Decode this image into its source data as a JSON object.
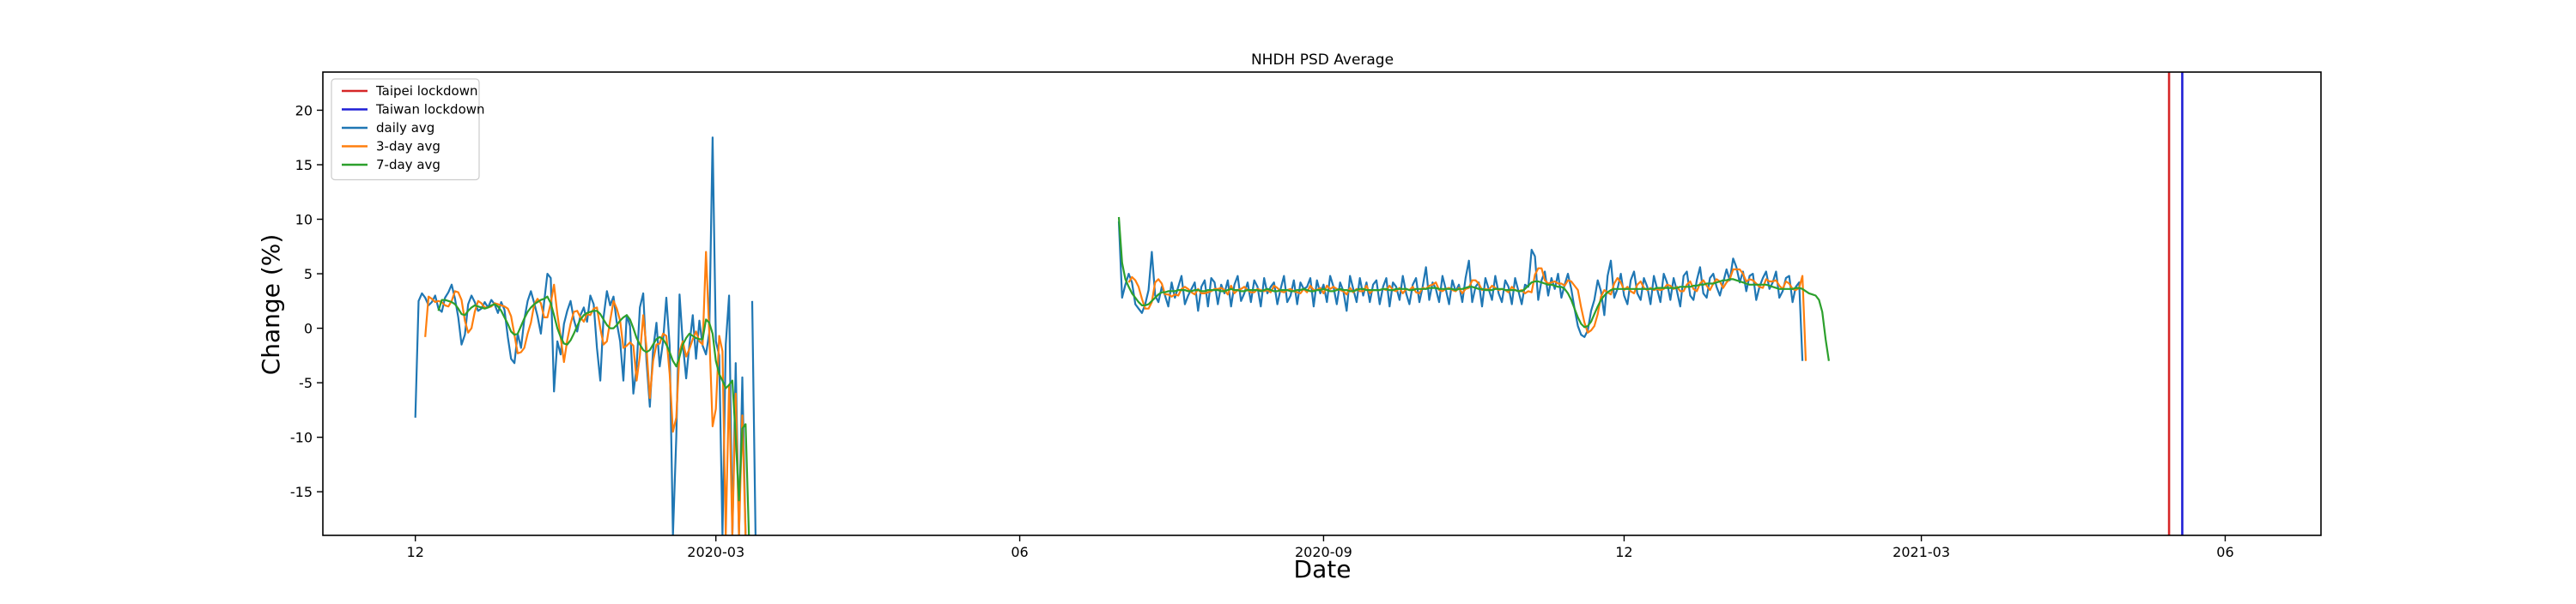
{
  "chart_data": {
    "type": "line",
    "title": "NHDH PSD Average",
    "xlabel": "Date",
    "ylabel": "Change (%)",
    "ylim": [
      -19,
      23.5
    ],
    "xlim": [
      "2019-11-03",
      "2021-06-30"
    ],
    "grid": false,
    "legend_position": "top-left",
    "yticks": [
      20,
      15,
      10,
      5,
      0,
      -5,
      -10,
      -15
    ],
    "xticks": [
      {
        "date": "2019-12-01",
        "label": "12"
      },
      {
        "date": "2020-03-01",
        "label": "2020-03"
      },
      {
        "date": "2020-06-01",
        "label": "06"
      },
      {
        "date": "2020-09-01",
        "label": "2020-09"
      },
      {
        "date": "2020-12-01",
        "label": "12"
      },
      {
        "date": "2021-03-01",
        "label": "2021-03"
      },
      {
        "date": "2021-06-01",
        "label": "06"
      }
    ],
    "vlines": [
      {
        "name": "Taipei lockdown",
        "date": "2021-05-15",
        "color": "#d62728"
      },
      {
        "name": "Taiwan lockdown",
        "date": "2021-05-19",
        "color": "#1f1fd6"
      }
    ],
    "series": [
      {
        "name": "daily avg",
        "color": "#1f77b4",
        "segments": [
          {
            "start": "2019-12-01",
            "values": [
              -8.2,
              2.5,
              3.2,
              2.8,
              2.1,
              2.4,
              3.0,
              1.8,
              1.5,
              2.8,
              3.3,
              4.0,
              2.7,
              1.0,
              -1.5,
              -0.6,
              2.2,
              3.0,
              2.4,
              1.6,
              1.8,
              2.4,
              1.9,
              2.6,
              2.2,
              1.4,
              2.4,
              1.7,
              -0.8,
              -2.8,
              -3.2,
              -0.5,
              -1.8,
              0.8,
              2.5,
              3.4,
              2.3,
              1.1,
              -0.5,
              2.4,
              5.0,
              4.6,
              -5.8,
              -1.2,
              -2.4,
              0.4,
              1.6,
              2.5,
              0.8,
              -0.3,
              1.2,
              1.9,
              0.6,
              3.0,
              2.2,
              -1.8,
              -4.8,
              1.0,
              3.4,
              2.1,
              2.9,
              0.5,
              -1.2,
              -4.8,
              1.2,
              0.2,
              -6.0,
              -3.5,
              1.9,
              3.2,
              -3.0,
              -7.2,
              -2.0,
              0.5,
              -3.5,
              -1.2,
              2.8,
              -1.6,
              -19,
              -10,
              3.1,
              -1.4,
              -4.6,
              -1.5,
              1.2,
              -2.8,
              0.7,
              -1.6,
              -2.4,
              -0.4,
              17.5,
              -1.2,
              -2.5,
              -19,
              -1.5,
              3.0,
              -19,
              -3.2,
              -19,
              -4.5,
              -19,
              null,
              2.5,
              -19
            ]
          },
          {
            "start": "2020-07-01",
            "values": [
              9.8,
              2.8,
              4.0,
              5.0,
              4.2,
              2.2,
              1.8,
              1.4,
              2.2,
              3.5,
              7.0,
              3.0,
              2.4,
              3.8,
              3.0,
              2.0,
              4.2,
              2.8,
              3.8,
              4.8,
              2.2,
              3.0,
              3.6,
              4.2,
              1.6,
              3.8,
              4.4,
              2.0,
              4.6,
              4.2,
              2.2,
              4.0,
              3.2,
              4.4,
              2.0,
              4.0,
              4.8,
              2.5,
              3.2,
              4.2,
              2.4,
              4.4,
              3.8,
              2.0,
              4.6,
              3.2,
              3.8,
              4.2,
              2.2,
              3.6,
              4.8,
              2.4,
              3.0,
              4.4,
              2.2,
              4.2,
              3.6,
              3.8,
              4.6,
              2.0,
              4.4,
              3.2,
              4.0,
              2.4,
              4.8,
              3.8,
              2.2,
              4.2,
              3.4,
              1.6,
              4.8,
              3.6,
              2.4,
              4.6,
              3.0,
              4.2,
              2.4,
              4.0,
              4.4,
              2.2,
              3.8,
              4.6,
              2.0,
              4.2,
              3.8,
              2.6,
              4.8,
              3.2,
              2.2,
              4.0,
              4.6,
              2.4,
              3.8,
              5.6,
              2.6,
              4.2,
              3.6,
              2.4,
              4.8,
              3.6,
              2.2,
              4.4,
              3.4,
              4.0,
              2.4,
              4.6,
              6.2,
              2.4,
              3.8,
              4.2,
              2.0,
              4.6,
              3.6,
              2.6,
              4.8,
              3.2,
              2.4,
              4.4,
              3.8,
              2.2,
              4.6,
              3.4,
              2.2,
              4.0,
              3.8,
              7.2,
              6.6,
              2.6,
              4.4,
              5.2,
              3.0,
              4.6,
              3.6,
              5.0,
              2.8,
              4.0,
              5.0,
              3.6,
              1.8,
              0.2,
              -0.6,
              -0.8,
              -0.2,
              1.6,
              2.6,
              4.4,
              3.4,
              1.2,
              4.8,
              6.2,
              2.8,
              3.6,
              5.0,
              3.0,
              2.2,
              4.4,
              5.2,
              3.2,
              2.6,
              4.6,
              3.8,
              2.2,
              4.8,
              3.6,
              2.4,
              5.0,
              4.2,
              2.6,
              4.6,
              3.4,
              2.0,
              4.8,
              5.2,
              3.0,
              2.6,
              4.4,
              5.6,
              3.2,
              2.8,
              4.6,
              5.0,
              3.8,
              3.0,
              4.2,
              5.4,
              4.4,
              6.4,
              5.6,
              4.2,
              5.2,
              3.4,
              4.8,
              5.0,
              2.6,
              3.8,
              4.6,
              5.2,
              3.6,
              4.2,
              5.2,
              2.8,
              3.4,
              4.6,
              4.8,
              2.4,
              3.8,
              4.2,
              -3.0
            ]
          }
        ]
      },
      {
        "name": "3-day avg",
        "color": "#ff7f0e",
        "segments": [
          {
            "start": "2019-12-04",
            "values": [
              -0.8,
              2.9,
              2.7,
              2.4,
              2.5,
              2.4,
              2.1,
              2.0,
              2.5,
              3.4,
              3.3,
              2.6,
              0.7,
              -0.4,
              0.0,
              1.5,
              2.5,
              2.3,
              1.9,
              1.9,
              2.0,
              2.3,
              2.2,
              2.1,
              2.0,
              1.8,
              1.1,
              -0.6,
              -2.3,
              -2.2,
              -1.8,
              -0.5,
              0.5,
              2.2,
              2.7,
              2.3,
              1.0,
              1.0,
              2.3,
              4.0,
              1.3,
              -0.8,
              -3.1,
              -1.1,
              0.4,
              1.5,
              1.6,
              1.0,
              0.6,
              1.3,
              1.2,
              1.8,
              1.9,
              0.0,
              -1.5,
              -1.2,
              0.7,
              2.5,
              1.8,
              0.7,
              -1.8,
              -1.6,
              -1.3,
              -1.6,
              -4.8,
              -2.5,
              1.2,
              -1.8,
              -6.4,
              -3.0,
              -1.5,
              -1.4,
              -0.5,
              -0.7,
              -4.2,
              -9.5,
              -8.2,
              -2.1,
              -1.2,
              -2.6,
              -1.9,
              -1.0,
              -0.3,
              -1.2,
              -1.5,
              7.0,
              -0.4,
              -9.0,
              -7.4,
              -0.7,
              -2.1,
              -19,
              -5.2,
              -19,
              -6.0,
              -19,
              -8.0,
              -19,
              null,
              -9.0
            ]
          },
          {
            "start": "2020-07-04",
            "values": [
              4.2,
              4.7,
              4.4,
              3.8,
              2.7,
              1.8,
              1.8,
              2.4,
              4.2,
              4.5,
              4.1,
              3.1,
              3.1,
              2.9,
              3.1,
              3.0,
              3.6,
              3.8,
              3.6,
              3.3,
              3.1,
              3.6,
              3.2,
              3.2,
              3.3,
              3.4,
              3.6,
              3.6,
              3.7,
              3.5,
              3.1,
              3.9,
              3.2,
              3.5,
              3.6,
              3.8,
              3.5,
              3.3,
              3.3,
              3.6,
              3.5,
              3.4,
              3.5,
              3.3,
              3.9,
              3.7,
              3.4,
              3.3,
              3.5,
              3.6,
              3.4,
              3.3,
              3.2,
              3.6,
              3.3,
              3.9,
              3.5,
              3.5,
              3.7,
              3.2,
              3.9,
              3.6,
              3.8,
              3.6,
              3.5,
              3.4,
              3.1,
              3.7,
              3.3,
              3.6,
              3.4,
              3.4,
              3.9,
              3.2,
              3.5,
              3.5,
              3.5,
              3.6,
              3.5,
              3.9,
              3.5,
              3.4,
              3.7,
              3.2,
              3.6,
              3.5,
              3.8,
              3.3,
              3.2,
              3.7,
              3.6,
              3.9,
              4.0,
              4.2,
              3.5,
              3.4,
              3.6,
              3.7,
              3.5,
              3.4,
              3.7,
              3.2,
              3.6,
              3.7,
              4.4,
              4.4,
              4.1,
              3.5,
              3.6,
              3.5,
              3.9,
              3.7,
              3.5,
              3.6,
              3.5,
              3.3,
              3.8,
              3.5,
              3.4,
              3.5,
              3.2,
              3.4,
              3.3,
              4.9,
              5.5,
              5.5,
              4.4,
              4.1,
              4.2,
              4.3,
              4.1,
              4.1,
              3.9,
              4.4,
              4.3,
              3.9,
              3.5,
              1.9,
              0.5,
              -0.4,
              -0.2,
              0.2,
              1.3,
              2.9,
              3.5,
              3.3,
              3.1,
              4.1,
              4.6,
              4.2,
              3.5,
              3.8,
              3.4,
              3.2,
              4.0,
              4.3,
              3.7,
              3.5,
              3.7,
              3.5,
              3.6,
              3.5,
              3.6,
              4.0,
              3.9,
              3.6,
              3.8,
              3.4,
              3.4,
              4.0,
              4.3,
              3.6,
              3.4,
              4.1,
              4.4,
              3.9,
              3.5,
              4.1,
              4.5,
              4.3,
              3.7,
              4.2,
              4.5,
              5.4,
              5.4,
              5.4,
              5.0,
              4.3,
              4.5,
              4.4,
              4.1,
              3.8,
              3.7,
              4.5,
              4.3,
              4.3,
              4.4,
              3.9,
              3.6,
              4.3,
              4.1,
              3.6,
              3.5,
              3.7,
              4.8,
              -3.0
            ]
          }
        ]
      },
      {
        "name": "7-day avg",
        "color": "#2ca02c",
        "segments": [
          {
            "start": "2019-12-08",
            "values": [
              1.6,
              2.6,
              2.6,
              2.5,
              2.4,
              2.2,
              1.8,
              1.3,
              1.2,
              1.6,
              1.9,
              2.1,
              2.0,
              1.9,
              1.8,
              1.9,
              2.1,
              2.2,
              2.0,
              1.6,
              1.0,
              0.4,
              -0.3,
              -0.6,
              -0.5,
              0.2,
              0.9,
              1.5,
              1.9,
              2.2,
              2.4,
              2.6,
              2.7,
              2.9,
              2.3,
              1.2,
              0.0,
              -0.8,
              -1.4,
              -1.5,
              -1.1,
              -0.5,
              0.2,
              0.8,
              1.2,
              1.4,
              1.5,
              1.6,
              1.6,
              1.3,
              0.8,
              0.3,
              0.0,
              0.0,
              0.3,
              0.7,
              1.0,
              1.2,
              0.8,
              0.0,
              -0.9,
              -1.5,
              -2.0,
              -2.2,
              -2.0,
              -1.5,
              -1.0,
              -0.8,
              -1.0,
              -1.5,
              -2.2,
              -3.0,
              -3.5,
              -2.6,
              -1.5,
              -0.9,
              -0.5,
              -0.7,
              -0.9,
              -1.0,
              -1.0,
              0.8,
              0.5,
              -0.5,
              -3.0,
              -4.2,
              -4.8,
              -5.5,
              -5.2,
              -4.8,
              -10,
              -15.8,
              -9.2,
              -8.8,
              -19,
              null,
              2.5
            ]
          },
          {
            "start": "2020-07-01",
            "values": [
              10.2,
              6.0,
              4.5,
              3.8,
              3.2,
              2.8,
              2.4,
              2.1,
              2.1,
              2.2,
              2.5,
              2.8,
              3.1,
              3.3,
              3.3,
              3.4,
              3.4,
              3.4,
              3.5,
              3.5,
              3.5,
              3.4,
              3.4,
              3.5,
              3.5,
              3.4,
              3.4,
              3.5,
              3.5,
              3.5,
              3.5,
              3.4,
              3.4,
              3.5,
              3.6,
              3.5,
              3.5,
              3.4,
              3.4,
              3.5,
              3.5,
              3.5,
              3.5,
              3.4,
              3.5,
              3.6,
              3.5,
              3.4,
              3.4,
              3.5,
              3.5,
              3.5,
              3.4,
              3.4,
              3.5,
              3.5,
              3.6,
              3.5,
              3.4,
              3.4,
              3.5,
              3.5,
              3.6,
              3.5,
              3.4,
              3.4,
              3.5,
              3.6,
              3.5,
              3.5,
              3.4,
              3.4,
              3.5,
              3.6,
              3.6,
              3.5,
              3.5,
              3.5,
              3.5,
              3.5,
              3.6,
              3.6,
              3.5,
              3.5,
              3.6,
              3.6,
              3.6,
              3.6,
              3.5,
              3.5,
              3.6,
              3.6,
              3.6,
              3.6,
              3.7,
              3.7,
              3.7,
              3.6,
              3.6,
              3.6,
              3.6,
              3.6,
              3.5,
              3.6,
              3.6,
              3.7,
              3.8,
              3.8,
              3.7,
              3.6,
              3.6,
              3.5,
              3.5,
              3.5,
              3.6,
              3.6,
              3.6,
              3.5,
              3.5,
              3.5,
              3.5,
              3.4,
              3.4,
              3.6,
              3.9,
              4.2,
              4.3,
              4.3,
              4.2,
              4.1,
              4.0,
              4.0,
              3.9,
              3.8,
              3.8,
              3.6,
              3.2,
              2.6,
              1.8,
              1.0,
              0.4,
              0.1,
              0.2,
              0.6,
              1.3,
              2.0,
              2.6,
              3.0,
              3.3,
              3.5,
              3.6,
              3.6,
              3.6,
              3.6,
              3.6,
              3.6,
              3.6,
              3.6,
              3.6,
              3.6,
              3.6,
              3.6,
              3.6,
              3.7,
              3.7,
              3.7,
              3.7,
              3.7,
              3.7,
              3.7,
              3.8,
              3.8,
              3.8,
              3.8,
              3.9,
              3.9,
              4.0,
              4.0,
              4.1,
              4.1,
              4.1,
              4.2,
              4.3,
              4.4,
              4.4,
              4.5,
              4.5,
              4.4,
              4.3,
              4.2,
              4.1,
              4.0,
              4.0,
              4.0,
              4.0,
              4.0,
              4.0,
              3.9,
              3.8,
              3.7,
              3.6,
              3.6,
              3.6,
              3.6,
              3.6,
              3.7,
              3.7,
              3.6,
              3.4,
              3.2,
              3.1,
              3.0,
              2.6,
              1.5,
              -1.0,
              -3.0
            ]
          }
        ]
      }
    ]
  }
}
